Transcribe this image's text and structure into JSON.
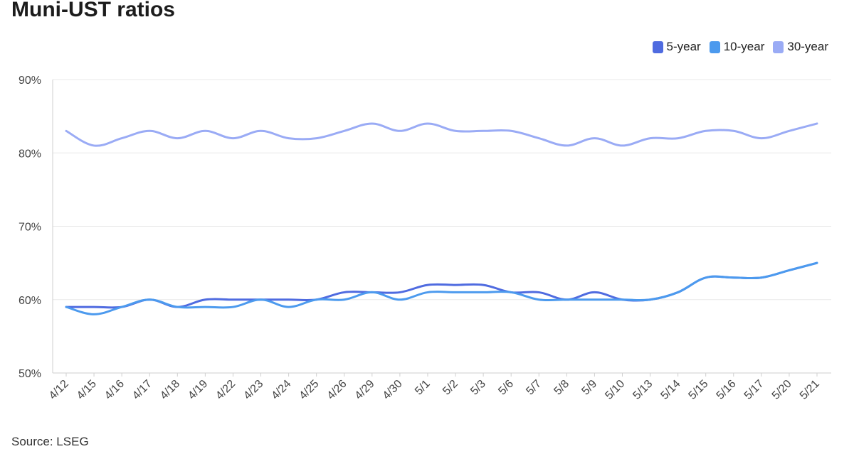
{
  "title": "Muni-UST ratios",
  "source": "Source: LSEG",
  "chart_data": {
    "type": "line",
    "title": "Muni-UST ratios",
    "xlabel": "",
    "ylabel": "",
    "ylim": [
      50,
      90
    ],
    "yticks": [
      "50%",
      "60%",
      "70%",
      "80%",
      "90%"
    ],
    "grid": true,
    "legend_position": "top-right",
    "categories": [
      "4/12",
      "4/15",
      "4/16",
      "4/17",
      "4/18",
      "4/19",
      "4/22",
      "4/23",
      "4/24",
      "4/25",
      "4/26",
      "4/29",
      "4/30",
      "5/1",
      "5/2",
      "5/3",
      "5/6",
      "5/7",
      "5/8",
      "5/9",
      "5/10",
      "5/13",
      "5/14",
      "5/15",
      "5/16",
      "5/17",
      "5/20",
      "5/21"
    ],
    "series": [
      {
        "name": "5-year",
        "color": "#4f6be0",
        "values": [
          59,
          59,
          59,
          60,
          59,
          60,
          60,
          60,
          60,
          60,
          61,
          61,
          61,
          62,
          62,
          62,
          61,
          61,
          60,
          61,
          60,
          60,
          61,
          63,
          63,
          63,
          64,
          65
        ]
      },
      {
        "name": "10-year",
        "color": "#4c9aee",
        "values": [
          59,
          58,
          59,
          60,
          59,
          59,
          59,
          60,
          59,
          60,
          60,
          61,
          60,
          61,
          61,
          61,
          61,
          60,
          60,
          60,
          60,
          60,
          61,
          63,
          63,
          63,
          64,
          65
        ]
      },
      {
        "name": "30-year",
        "color": "#9aabf5",
        "values": [
          83,
          81,
          82,
          83,
          82,
          83,
          82,
          83,
          82,
          82,
          83,
          84,
          83,
          84,
          83,
          83,
          83,
          82,
          81,
          82,
          81,
          82,
          82,
          83,
          83,
          82,
          83,
          84
        ]
      }
    ]
  }
}
